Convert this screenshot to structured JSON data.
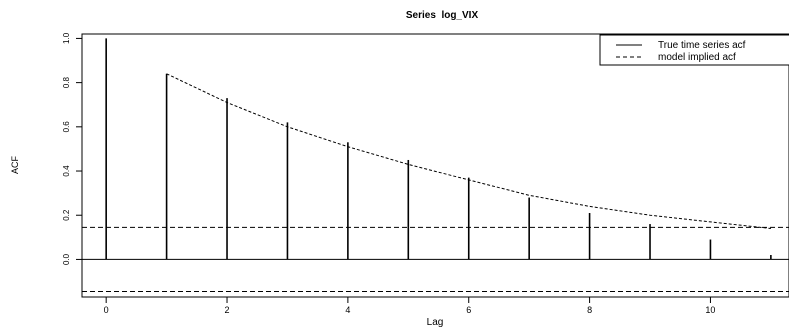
{
  "chart_data": {
    "type": "bar",
    "title": "Series  log_VIX",
    "xlabel": "Lag",
    "ylabel": "ACF",
    "xlim": [
      -0.4,
      11.3
    ],
    "ylim": [
      -0.17,
      1.02
    ],
    "x_ticks": [
      0,
      2,
      4,
      6,
      8,
      10
    ],
    "y_ticks": [
      0.0,
      0.2,
      0.4,
      0.6,
      0.8,
      1.0
    ],
    "y_tick_labels": [
      "0.0",
      "0.2",
      "0.4",
      "0.6",
      "0.8",
      "1.0"
    ],
    "series": [
      {
        "name": "True time series acf",
        "style": "solid",
        "x": [
          0,
          1,
          2,
          3,
          4,
          5,
          6,
          7,
          8,
          9,
          10,
          11
        ],
        "values": [
          1.0,
          0.84,
          0.73,
          0.62,
          0.53,
          0.45,
          0.37,
          0.28,
          0.21,
          0.16,
          0.09,
          0.02
        ]
      },
      {
        "name": "model implied acf",
        "style": "dashed",
        "x": [
          1,
          2,
          3,
          4,
          5,
          6,
          7,
          8,
          9,
          10,
          11
        ],
        "values": [
          0.84,
          0.71,
          0.6,
          0.51,
          0.43,
          0.36,
          0.29,
          0.24,
          0.2,
          0.17,
          0.14
        ]
      }
    ],
    "confidence_bounds": [
      0.145,
      -0.145
    ],
    "legend_position": "top-right",
    "grid": false
  }
}
